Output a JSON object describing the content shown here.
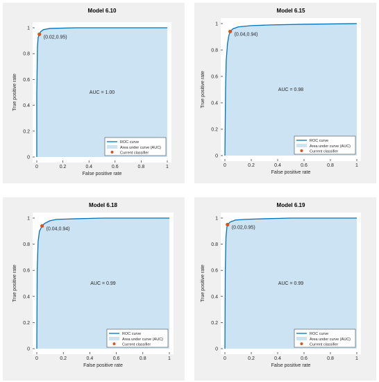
{
  "colors": {
    "panel_bg": "#f0f0f0",
    "axes_bg": "#ffffff",
    "auc_fill": "#cce3f3",
    "roc_line": "#0072bd",
    "marker": "#d95319",
    "text": "#262626",
    "axis_line": "#262626"
  },
  "chart_data": [
    {
      "type": "area",
      "title": "Model 6.10",
      "xlabel": "False positive rate",
      "ylabel": "True positive rate",
      "xlim": [
        0,
        1
      ],
      "ylim": [
        0,
        1
      ],
      "xticks": [
        "0",
        "0.2",
        "0.4",
        "0.6",
        "0.8",
        "1"
      ],
      "yticks": [
        "0",
        "0.2",
        "0.4",
        "0.6",
        "0.8",
        "1"
      ],
      "grid": false,
      "legend_position": "bottom-right",
      "legend": [
        "ROC curve",
        "Area under curve (AUC)",
        "Current classifier"
      ],
      "auc_label": "AUC = 1.00",
      "current_point": {
        "x": 0.02,
        "y": 0.95,
        "label": "(0.02,0.95)"
      },
      "roc": {
        "x": [
          0,
          0,
          0.005,
          0.01,
          0.015,
          0.02,
          0.03,
          0.05,
          0.1,
          0.3,
          1
        ],
        "y": [
          0,
          0.5,
          0.85,
          0.92,
          0.94,
          0.95,
          0.97,
          0.985,
          0.995,
          1,
          1
        ]
      }
    },
    {
      "type": "area",
      "title": "Model 6.15",
      "xlabel": "False positive rate",
      "ylabel": "True positive rate",
      "xlim": [
        0,
        1
      ],
      "ylim": [
        0,
        1
      ],
      "xticks": [
        "0",
        "0.2",
        "0.4",
        "0.6",
        "0.8",
        "1"
      ],
      "yticks": [
        "0",
        "0.2",
        "0.4",
        "0.6",
        "0.8",
        "1"
      ],
      "grid": false,
      "legend_position": "bottom-right",
      "legend": [
        "ROC curve",
        "Area under curve (AUC)",
        "Current classifier"
      ],
      "auc_label": "AUC = 0.98",
      "current_point": {
        "x": 0.04,
        "y": 0.94,
        "label": "(0.04,0.94)"
      },
      "roc": {
        "x": [
          0,
          0.005,
          0.01,
          0.02,
          0.03,
          0.04,
          0.06,
          0.1,
          0.2,
          0.35,
          0.6,
          1
        ],
        "y": [
          0,
          0.5,
          0.72,
          0.85,
          0.91,
          0.94,
          0.96,
          0.975,
          0.985,
          0.99,
          0.995,
          1
        ]
      }
    },
    {
      "type": "area",
      "title": "Model 6.18",
      "xlabel": "False positive rate",
      "ylabel": "True positive rate",
      "xlim": [
        0,
        1
      ],
      "ylim": [
        0,
        1
      ],
      "xticks": [
        "0",
        "0.2",
        "0.4",
        "0.6",
        "0.8",
        "1"
      ],
      "yticks": [
        "0",
        "0.2",
        "0.4",
        "0.6",
        "0.8",
        "1"
      ],
      "grid": false,
      "legend_position": "bottom-right",
      "legend": [
        "ROC curve",
        "Area under curve (AUC)",
        "Current classifier"
      ],
      "auc_label": "AUC = 0.99",
      "current_point": {
        "x": 0.04,
        "y": 0.94,
        "label": "(0.04,0.94)"
      },
      "roc": {
        "x": [
          0,
          0.003,
          0.01,
          0.02,
          0.03,
          0.04,
          0.06,
          0.1,
          0.15,
          0.3,
          0.5,
          1
        ],
        "y": [
          0,
          0.6,
          0.82,
          0.9,
          0.92,
          0.94,
          0.96,
          0.98,
          0.99,
          0.995,
          1,
          1
        ]
      }
    },
    {
      "type": "area",
      "title": "Model 6.19",
      "xlabel": "False positive rate",
      "ylabel": "True positive rate",
      "xlim": [
        0,
        1
      ],
      "ylim": [
        0,
        1
      ],
      "xticks": [
        "0",
        "0.2",
        "0.4",
        "0.6",
        "0.8",
        "1"
      ],
      "yticks": [
        "0",
        "0.2",
        "0.4",
        "0.6",
        "0.8",
        "1"
      ],
      "grid": false,
      "legend_position": "bottom-right",
      "legend": [
        "ROC curve",
        "Area under curve (AUC)",
        "Current classifier"
      ],
      "auc_label": "AUC = 0.99",
      "current_point": {
        "x": 0.02,
        "y": 0.95,
        "label": "(0.02,0.95)"
      },
      "roc": {
        "x": [
          0,
          0.003,
          0.008,
          0.015,
          0.02,
          0.04,
          0.08,
          0.15,
          0.3,
          0.5,
          1
        ],
        "y": [
          0,
          0.6,
          0.85,
          0.93,
          0.95,
          0.97,
          0.985,
          0.99,
          0.995,
          1,
          1
        ]
      }
    }
  ]
}
